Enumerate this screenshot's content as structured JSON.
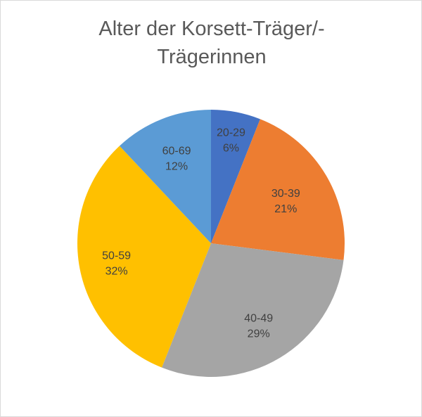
{
  "chart_data": {
    "type": "pie",
    "title": "Alter der Korsett-Träger/-Trägerinnen",
    "title_lines": [
      "Alter der Korsett-Träger/-",
      "Trägerinnen"
    ],
    "categories": [
      "20-29",
      "30-39",
      "40-49",
      "50-59",
      "60-69"
    ],
    "values": [
      6,
      21,
      29,
      32,
      12
    ],
    "value_labels": [
      "6%",
      "21%",
      "29%",
      "32%",
      "12%"
    ],
    "colors": [
      "#4472C4",
      "#ED7D31",
      "#A5A5A5",
      "#FFC000",
      "#5B9BD5"
    ],
    "start_angle_deg": 0,
    "direction": "clockwise",
    "legend": "none",
    "data_labels": "category and percentage inside slices"
  }
}
